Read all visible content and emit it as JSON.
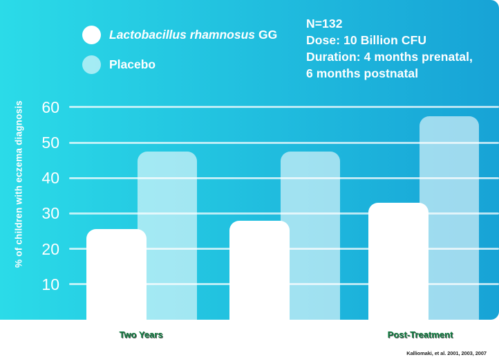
{
  "colors": {
    "bg_gradient_left": "#2BDBE8",
    "bg_gradient_right": "#17A3D6",
    "gridline": "rgba(255,255,255,0.7)",
    "lgg_bar": "#FFFFFF",
    "placebo_bar": "rgba(255,255,255,0.58)",
    "x_label": "#0D7A3E",
    "axis_text": "#FFFFFF",
    "footnote_text": "#1E1E1E"
  },
  "legend": {
    "items": [
      {
        "id": "lgg",
        "label_italic": "Lactobacillus rhamnosus",
        "label_rest": "GG"
      },
      {
        "id": "placebo",
        "label_italic": "",
        "label_rest": "Placebo"
      }
    ]
  },
  "annotation": {
    "lines": [
      "N=132",
      "Dose: 10 Billion CFU",
      "Duration: 4 months prenatal,",
      "6 months postnatal"
    ]
  },
  "chart_data": {
    "type": "bar",
    "title": "",
    "ylabel": "% of children with eczema diagnosis",
    "xlabel": "",
    "categories": [
      "Two Years",
      "",
      "Post-Treatment"
    ],
    "series": [
      {
        "name": "Lactobacillus rhamnosus GG",
        "values": [
          25.5,
          28,
          33
        ]
      },
      {
        "name": "Placebo",
        "values": [
          47.5,
          47.5,
          57.5
        ]
      }
    ],
    "yticks": [
      10,
      20,
      30,
      40,
      50,
      60
    ],
    "ylim": [
      0,
      63
    ],
    "grid": true,
    "legend_position": "top-left"
  },
  "footnote": "Kalliomaki, et al. 2001, 2003, 2007"
}
